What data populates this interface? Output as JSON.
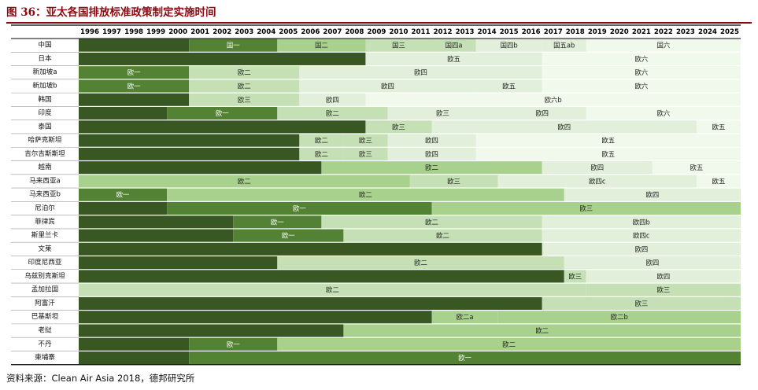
{
  "header": {
    "title": "图 36：亚太各国排放标准政策制定实施时间"
  },
  "footer": {
    "source": "资料来源：Clean Air Asia 2018，德邦研究所"
  },
  "colors": {
    "title": "#8a0a12",
    "level_1": "#385723",
    "level_2": "#548235",
    "level_3": "#a9d18e",
    "level_4": "#c5e0b4",
    "level_5": "#e2efda",
    "level_6": "#f1f8ec",
    "row_separator": "#ffffff"
  },
  "chart_data": {
    "type": "table",
    "title": "亚太各国排放标准政策制定实施时间",
    "years": [
      "1996",
      "1997",
      "1998",
      "1999",
      "2000",
      "2001",
      "2002",
      "2003",
      "2004",
      "2005",
      "2006",
      "2007",
      "2008",
      "2009",
      "2010",
      "2011",
      "2012",
      "2013",
      "2014",
      "2015",
      "2016",
      "2017",
      "2018",
      "2019",
      "2020",
      "2021",
      "2022",
      "2023",
      "2024",
      "2025"
    ],
    "rows": [
      {
        "country": "中国",
        "segments": [
          {
            "label": "",
            "start": 1996,
            "end": 2000,
            "level": 1
          },
          {
            "label": "国一",
            "start": 2001,
            "end": 2004,
            "level": 2
          },
          {
            "label": "国二",
            "start": 2005,
            "end": 2008,
            "level": 3
          },
          {
            "label": "国三",
            "start": 2009,
            "end": 2011,
            "level": 4
          },
          {
            "label": "国四a",
            "start": 2012,
            "end": 2013,
            "level": 4
          },
          {
            "label": "国四b",
            "start": 2014,
            "end": 2016,
            "level": 5
          },
          {
            "label": "国五ab",
            "start": 2017,
            "end": 2018,
            "level": 5
          },
          {
            "label": "国六",
            "start": 2019,
            "end": 2025,
            "level": 6
          }
        ]
      },
      {
        "country": "日本",
        "segments": [
          {
            "label": "",
            "start": 1996,
            "end": 2008,
            "level": 1
          },
          {
            "label": "欧五",
            "start": 2009,
            "end": 2016,
            "level": 5
          },
          {
            "label": "欧六",
            "start": 2017,
            "end": 2025,
            "level": 6
          }
        ]
      },
      {
        "country": "新加坡a",
        "segments": [
          {
            "label": "欧一",
            "start": 1996,
            "end": 2000,
            "level": 2
          },
          {
            "label": "欧二",
            "start": 2001,
            "end": 2005,
            "level": 4
          },
          {
            "label": "欧四",
            "start": 2006,
            "end": 2016,
            "level": 5
          },
          {
            "label": "欧六",
            "start": 2017,
            "end": 2025,
            "level": 6
          }
        ]
      },
      {
        "country": "新加坡b",
        "segments": [
          {
            "label": "欧一",
            "start": 1996,
            "end": 2000,
            "level": 2
          },
          {
            "label": "欧二",
            "start": 2001,
            "end": 2005,
            "level": 4
          },
          {
            "label": "欧四",
            "start": 2006,
            "end": 2013,
            "level": 5
          },
          {
            "label": "欧五",
            "start": 2014,
            "end": 2016,
            "level": 5
          },
          {
            "label": "欧六",
            "start": 2017,
            "end": 2025,
            "level": 6
          }
        ]
      },
      {
        "country": "韩国",
        "segments": [
          {
            "label": "",
            "start": 1996,
            "end": 2000,
            "level": 1
          },
          {
            "label": "欧三",
            "start": 2001,
            "end": 2005,
            "level": 4
          },
          {
            "label": "欧四",
            "start": 2006,
            "end": 2008,
            "level": 5
          },
          {
            "label": "欧六b",
            "start": 2009,
            "end": 2025,
            "level": 6
          }
        ]
      },
      {
        "country": "印度",
        "segments": [
          {
            "label": "",
            "start": 1996,
            "end": 1999,
            "level": 1
          },
          {
            "label": "欧一",
            "start": 2000,
            "end": 2004,
            "level": 2
          },
          {
            "label": "欧二",
            "start": 2005,
            "end": 2009,
            "level": 4
          },
          {
            "label": "欧三",
            "start": 2010,
            "end": 2014,
            "level": 5
          },
          {
            "label": "欧四",
            "start": 2015,
            "end": 2018,
            "level": 5
          },
          {
            "label": "欧六",
            "start": 2019,
            "end": 2025,
            "level": 6
          }
        ]
      },
      {
        "country": "泰国",
        "segments": [
          {
            "label": "",
            "start": 1996,
            "end": 2008,
            "level": 1
          },
          {
            "label": "欧三",
            "start": 2009,
            "end": 2011,
            "level": 4
          },
          {
            "label": "欧四",
            "start": 2012,
            "end": 2023,
            "level": 5
          },
          {
            "label": "欧五",
            "start": 2024,
            "end": 2025,
            "level": 6
          }
        ]
      },
      {
        "country": "哈萨克斯坦",
        "segments": [
          {
            "label": "",
            "start": 1996,
            "end": 2005,
            "level": 1
          },
          {
            "label": "欧二",
            "start": 2006,
            "end": 2007,
            "level": 4
          },
          {
            "label": "欧三",
            "start": 2008,
            "end": 2009,
            "level": 4
          },
          {
            "label": "欧四",
            "start": 2010,
            "end": 2013,
            "level": 5
          },
          {
            "label": "欧五",
            "start": 2014,
            "end": 2025,
            "level": 6
          }
        ]
      },
      {
        "country": "吉尔吉斯斯坦",
        "segments": [
          {
            "label": "",
            "start": 1996,
            "end": 2005,
            "level": 1
          },
          {
            "label": "欧二",
            "start": 2006,
            "end": 2007,
            "level": 4
          },
          {
            "label": "欧三",
            "start": 2008,
            "end": 2009,
            "level": 4
          },
          {
            "label": "欧四",
            "start": 2010,
            "end": 2013,
            "level": 5
          },
          {
            "label": "欧五",
            "start": 2014,
            "end": 2025,
            "level": 6
          }
        ]
      },
      {
        "country": "越南",
        "segments": [
          {
            "label": "",
            "start": 1996,
            "end": 2006,
            "level": 1
          },
          {
            "label": "欧二",
            "start": 2007,
            "end": 2016,
            "level": 3
          },
          {
            "label": "欧四",
            "start": 2017,
            "end": 2021,
            "level": 5
          },
          {
            "label": "欧五",
            "start": 2022,
            "end": 2025,
            "level": 6
          }
        ]
      },
      {
        "country": "马来西亚a",
        "segments": [
          {
            "label": "欧二",
            "start": 1996,
            "end": 2010,
            "level": 3
          },
          {
            "label": "欧三",
            "start": 2011,
            "end": 2014,
            "level": 4
          },
          {
            "label": "欧四c",
            "start": 2015,
            "end": 2023,
            "level": 5
          },
          {
            "label": "欧五",
            "start": 2024,
            "end": 2025,
            "level": 6
          }
        ]
      },
      {
        "country": "马来西亚b",
        "segments": [
          {
            "label": "欧一",
            "start": 1996,
            "end": 1999,
            "level": 2
          },
          {
            "label": "欧二",
            "start": 2000,
            "end": 2017,
            "level": 3
          },
          {
            "label": "欧四",
            "start": 2018,
            "end": 2025,
            "level": 5
          }
        ]
      },
      {
        "country": "尼泊尔",
        "segments": [
          {
            "label": "",
            "start": 1996,
            "end": 1999,
            "level": 1
          },
          {
            "label": "欧一",
            "start": 2000,
            "end": 2011,
            "level": 2
          },
          {
            "label": "欧三",
            "start": 2012,
            "end": 2025,
            "level": 3
          }
        ]
      },
      {
        "country": "菲律宾",
        "segments": [
          {
            "label": "",
            "start": 1996,
            "end": 2002,
            "level": 1
          },
          {
            "label": "欧一",
            "start": 2003,
            "end": 2006,
            "level": 2
          },
          {
            "label": "欧二",
            "start": 2007,
            "end": 2016,
            "level": 4
          },
          {
            "label": "欧四b",
            "start": 2017,
            "end": 2025,
            "level": 5
          }
        ]
      },
      {
        "country": "斯里兰卡",
        "segments": [
          {
            "label": "",
            "start": 1996,
            "end": 2002,
            "level": 1
          },
          {
            "label": "欧一",
            "start": 2003,
            "end": 2007,
            "level": 2
          },
          {
            "label": "欧二",
            "start": 2008,
            "end": 2016,
            "level": 4
          },
          {
            "label": "欧四c",
            "start": 2017,
            "end": 2025,
            "level": 5
          }
        ]
      },
      {
        "country": "文莱",
        "segments": [
          {
            "label": "",
            "start": 1996,
            "end": 2016,
            "level": 1
          },
          {
            "label": "欧四",
            "start": 2017,
            "end": 2025,
            "level": 5
          }
        ]
      },
      {
        "country": "印度尼西亚",
        "segments": [
          {
            "label": "",
            "start": 1996,
            "end": 2004,
            "level": 1
          },
          {
            "label": "欧二",
            "start": 2005,
            "end": 2017,
            "level": 4
          },
          {
            "label": "欧四",
            "start": 2018,
            "end": 2025,
            "level": 5
          }
        ]
      },
      {
        "country": "乌兹别克斯坦",
        "segments": [
          {
            "label": "",
            "start": 1996,
            "end": 2017,
            "level": 1
          },
          {
            "label": "欧三",
            "start": 2018,
            "end": 2018,
            "level": 4
          },
          {
            "label": "欧四",
            "start": 2019,
            "end": 2025,
            "level": 5
          }
        ]
      },
      {
        "country": "孟加拉国",
        "segments": [
          {
            "label": "欧二",
            "start": 1996,
            "end": 2018,
            "level": 4
          },
          {
            "label": "欧三",
            "start": 2019,
            "end": 2025,
            "level": 4
          }
        ]
      },
      {
        "country": "阿富汗",
        "segments": [
          {
            "label": "",
            "start": 1996,
            "end": 2016,
            "level": 1
          },
          {
            "label": "欧三",
            "start": 2017,
            "end": 2025,
            "level": 4
          }
        ]
      },
      {
        "country": "巴基斯坦",
        "segments": [
          {
            "label": "",
            "start": 1996,
            "end": 2011,
            "level": 1
          },
          {
            "label": "欧二a",
            "start": 2012,
            "end": 2014,
            "level": 3
          },
          {
            "label": "欧二b",
            "start": 2015,
            "end": 2025,
            "level": 3
          }
        ]
      },
      {
        "country": "老挝",
        "segments": [
          {
            "label": "",
            "start": 1996,
            "end": 2007,
            "level": 1
          },
          {
            "label": "欧二",
            "start": 2008,
            "end": 2025,
            "level": 3
          }
        ]
      },
      {
        "country": "不丹",
        "segments": [
          {
            "label": "",
            "start": 1996,
            "end": 2000,
            "level": 1
          },
          {
            "label": "欧一",
            "start": 2001,
            "end": 2004,
            "level": 2
          },
          {
            "label": "欧二",
            "start": 2005,
            "end": 2025,
            "level": 3
          }
        ]
      },
      {
        "country": "柬埔寨",
        "segments": [
          {
            "label": "",
            "start": 1996,
            "end": 2000,
            "level": 1
          },
          {
            "label": "欧一",
            "start": 2001,
            "end": 2025,
            "level": 2
          }
        ]
      }
    ]
  }
}
